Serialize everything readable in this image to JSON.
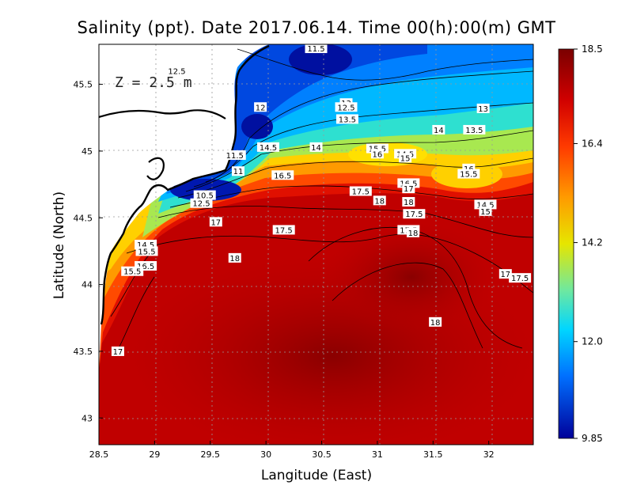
{
  "chart_data": {
    "type": "heatmap",
    "title": "Salinity (ppt). Date 2017.06.14. Time 00(h):00(m) GMT",
    "xlabel": "Langitude (East)",
    "ylabel": "Latitude (North)",
    "annotation": "Z = 2.5 m",
    "xlim": [
      28.5,
      32.4
    ],
    "ylim": [
      42.8,
      45.8
    ],
    "x_ticks": [
      "28.5",
      "29",
      "29.5",
      "30",
      "30.5",
      "31",
      "31.5",
      "32"
    ],
    "y_ticks": [
      "43",
      "43.5",
      "44",
      "44.5",
      "45",
      "45.5"
    ],
    "grid": true,
    "colorbar": {
      "min": 9.85,
      "max": 18.5,
      "tick_labels": [
        "18.5",
        "16.4",
        "14.2",
        "12.0",
        "9.85"
      ],
      "colors": [
        "#800000",
        "#e60000",
        "#ff7a00",
        "#ffd800",
        "#9be75e",
        "#00d8ff",
        "#0070ff",
        "#0000a0"
      ]
    },
    "contour_labels": [
      {
        "text": "11.5",
        "lon": 30.45,
        "lat": 45.77
      },
      {
        "text": "12.5",
        "lon": 29.2,
        "lat": 45.6
      },
      {
        "text": "12",
        "lon": 29.95,
        "lat": 45.33
      },
      {
        "text": "13",
        "lon": 30.72,
        "lat": 45.36
      },
      {
        "text": "12.5",
        "lon": 30.72,
        "lat": 45.33
      },
      {
        "text": "13.5",
        "lon": 30.73,
        "lat": 45.24
      },
      {
        "text": "13",
        "lon": 31.95,
        "lat": 45.32
      },
      {
        "text": "14",
        "lon": 31.55,
        "lat": 45.16
      },
      {
        "text": "13.5",
        "lon": 31.87,
        "lat": 45.16
      },
      {
        "text": "14.5",
        "lon": 30.02,
        "lat": 45.03
      },
      {
        "text": "14",
        "lon": 30.45,
        "lat": 45.03
      },
      {
        "text": "15.5",
        "lon": 31.0,
        "lat": 45.02
      },
      {
        "text": "16",
        "lon": 31.0,
        "lat": 44.98
      },
      {
        "text": "14.5",
        "lon": 31.25,
        "lat": 44.98
      },
      {
        "text": "15",
        "lon": 31.25,
        "lat": 44.95
      },
      {
        "text": "11.5",
        "lon": 29.72,
        "lat": 44.97
      },
      {
        "text": "11",
        "lon": 29.75,
        "lat": 44.85
      },
      {
        "text": "16.5",
        "lon": 30.15,
        "lat": 44.82
      },
      {
        "text": "16",
        "lon": 31.82,
        "lat": 44.87
      },
      {
        "text": "15.5",
        "lon": 31.82,
        "lat": 44.83
      },
      {
        "text": "10.5",
        "lon": 29.45,
        "lat": 44.67
      },
      {
        "text": "12.5",
        "lon": 29.42,
        "lat": 44.61
      },
      {
        "text": "17.5",
        "lon": 30.85,
        "lat": 44.7
      },
      {
        "text": "16.5",
        "lon": 31.28,
        "lat": 44.76
      },
      {
        "text": "17",
        "lon": 31.28,
        "lat": 44.72
      },
      {
        "text": "18",
        "lon": 31.02,
        "lat": 44.63
      },
      {
        "text": "18",
        "lon": 31.28,
        "lat": 44.62
      },
      {
        "text": "14.5",
        "lon": 31.97,
        "lat": 44.6
      },
      {
        "text": "15",
        "lon": 31.97,
        "lat": 44.55
      },
      {
        "text": "17.5",
        "lon": 31.33,
        "lat": 44.53
      },
      {
        "text": "17",
        "lon": 29.55,
        "lat": 44.47
      },
      {
        "text": "17.5",
        "lon": 30.16,
        "lat": 44.41
      },
      {
        "text": "17.5",
        "lon": 31.28,
        "lat": 44.41
      },
      {
        "text": "18",
        "lon": 31.32,
        "lat": 44.39
      },
      {
        "text": "14.5",
        "lon": 28.92,
        "lat": 44.3
      },
      {
        "text": "15.5",
        "lon": 28.93,
        "lat": 44.25
      },
      {
        "text": "18",
        "lon": 29.72,
        "lat": 44.2
      },
      {
        "text": "16.5",
        "lon": 28.92,
        "lat": 44.14
      },
      {
        "text": "15.5",
        "lon": 28.8,
        "lat": 44.1
      },
      {
        "text": "17",
        "lon": 32.15,
        "lat": 44.08
      },
      {
        "text": "17.5",
        "lon": 32.28,
        "lat": 44.05
      },
      {
        "text": "18",
        "lon": 31.52,
        "lat": 43.72
      },
      {
        "text": "17",
        "lon": 28.67,
        "lat": 43.5
      }
    ]
  }
}
